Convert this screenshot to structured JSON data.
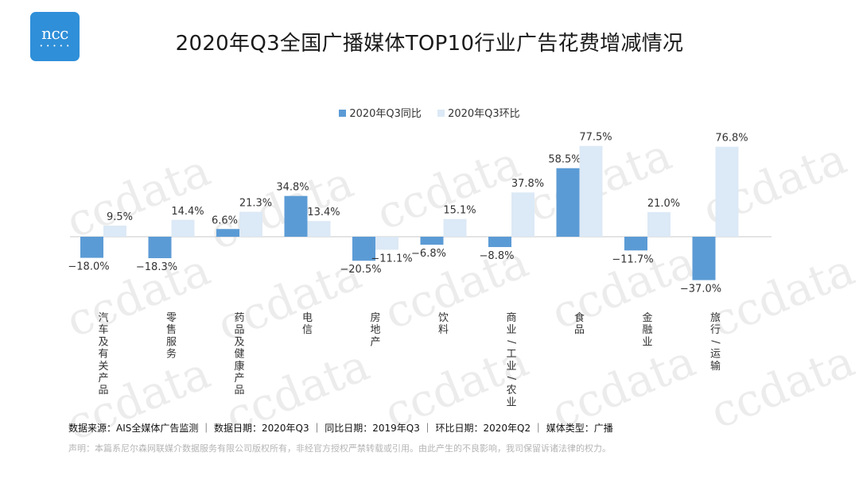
{
  "logo": {
    "text": "ncc",
    "dots": "• • • • •"
  },
  "title": "2020年Q3全国广播媒体TOP10行业广告花费增减情况",
  "legend": [
    {
      "label": "2020年Q3同比",
      "color": "#5b9bd5"
    },
    {
      "label": "2020年Q3环比",
      "color": "#dce9f6"
    }
  ],
  "watermark": "ccdata",
  "chart_data": {
    "type": "bar",
    "categories": [
      "汽车及有关产品",
      "零售服务",
      "药品及健康产品",
      "电信",
      "房地产",
      "饮料",
      "商业/工业/农业",
      "食品",
      "金融业",
      "旅行/运输"
    ],
    "series": [
      {
        "name": "2020年Q3同比",
        "values": [
          -18.0,
          -18.3,
          6.6,
          34.8,
          -20.5,
          -6.8,
          -8.8,
          58.5,
          -11.7,
          -37.0
        ],
        "color": "#5b9bd5"
      },
      {
        "name": "2020年Q3环比",
        "values": [
          9.5,
          14.4,
          21.3,
          13.4,
          -11.1,
          15.1,
          37.8,
          77.5,
          21.0,
          76.8
        ],
        "color": "#dce9f6"
      }
    ],
    "data_labels": [
      [
        "−18.0%",
        "−18.3%",
        "6.6%",
        "34.8%",
        "−20.5%",
        "−6.8%",
        "−8.8%",
        "58.5%",
        "−11.7%",
        "−37.0%"
      ],
      [
        "9.5%",
        "14.4%",
        "21.3%",
        "13.4%",
        "−11.1%",
        "15.1%",
        "37.8%",
        "77.5%",
        "21.0%",
        "76.8%"
      ]
    ],
    "ylim": [
      -37.0,
      77.5
    ],
    "grid": false,
    "legend_position": "top-center"
  },
  "footer": "数据来源：AIS全媒体广告监测 ｜ 数据日期：2020年Q3 ｜ 同比日期：2019年Q3 ｜ 环比日期：2020年Q2 ｜ 媒体类型：广播",
  "notice": "声明：本篇系尼尔森网联媒介数据服务有限公司版权所有，非经官方授权严禁转载或引用。由此产生的不良影响，我司保留诉诸法律的权力。"
}
